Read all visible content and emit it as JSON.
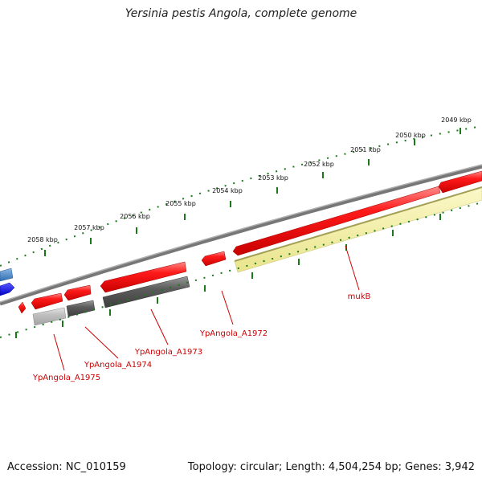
{
  "title": "Yersinia pestis Angola, complete genome",
  "footer": {
    "accession_label": "Accession:",
    "accession": "NC_010159",
    "topology": "Topology: circular; Length: 4,504,254 bp; Genes: 3,942"
  },
  "scale_labels": [
    "2049 kbp",
    "2050 kbp",
    "2051 kbp",
    "2052 kbp",
    "2053 kbp",
    "2054 kbp",
    "2055 kbp",
    "2056 kbp",
    "2057 kbp",
    "2058 kbp"
  ],
  "gene_labels": [
    "mukB",
    "YpAngola_A1972",
    "YpAngola_A1973",
    "YpAngola_A1974",
    "YpAngola_A1975"
  ],
  "colors": {
    "cds": "#ff0000",
    "gene_dark": "#5a5a5a",
    "gene_light": "#b8b8b8",
    "highlight": "#f2ee9c",
    "backbone": "#8a8a8a",
    "ticks": "#1a7a1a",
    "label_line": "#cc0000",
    "blue_light": "#4a86c8",
    "blue_dark": "#0000ee"
  }
}
